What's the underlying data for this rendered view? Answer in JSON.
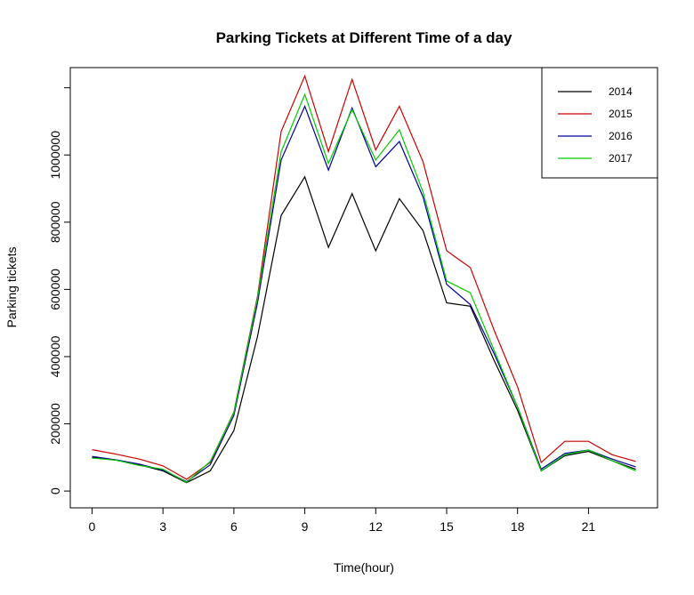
{
  "chart_data": {
    "type": "line",
    "title": "Parking Tickets at Different Time of a day",
    "xlabel": "Time(hour)",
    "ylabel": "Parking tickets",
    "x": [
      0,
      1,
      2,
      3,
      4,
      5,
      6,
      7,
      8,
      9,
      10,
      11,
      12,
      13,
      14,
      15,
      16,
      17,
      18,
      19,
      20,
      21,
      22,
      23
    ],
    "x_ticks": [
      0,
      3,
      6,
      9,
      12,
      15,
      18,
      21
    ],
    "y_ticks": [
      0,
      200000,
      400000,
      600000,
      800000,
      1000000
    ],
    "xlim": [
      -0.92,
      23.92
    ],
    "ylim": [
      -50000,
      1260000
    ],
    "grid": false,
    "legend_position": "top-right",
    "series": [
      {
        "name": "2014",
        "color": "#000000",
        "values": [
          100000,
          92000,
          78000,
          60000,
          25000,
          60000,
          180000,
          460000,
          820000,
          935000,
          725000,
          885000,
          715000,
          870000,
          775000,
          560000,
          550000,
          390000,
          240000,
          60000,
          105000,
          118000,
          90000,
          65000
        ]
      },
      {
        "name": "2015",
        "color": "#cc0000",
        "values": [
          123000,
          110000,
          95000,
          75000,
          35000,
          85000,
          235000,
          580000,
          1070000,
          1235000,
          1010000,
          1225000,
          1015000,
          1145000,
          980000,
          715000,
          665000,
          480000,
          310000,
          85000,
          148000,
          148000,
          108000,
          88000
        ]
      },
      {
        "name": "2016",
        "color": "#000099",
        "values": [
          103000,
          93000,
          80000,
          62000,
          28000,
          78000,
          225000,
          560000,
          985000,
          1145000,
          955000,
          1140000,
          965000,
          1040000,
          875000,
          615000,
          555000,
          410000,
          250000,
          65000,
          112000,
          122000,
          95000,
          72000
        ]
      },
      {
        "name": "2017",
        "color": "#00cc00",
        "values": [
          98000,
          92000,
          76000,
          65000,
          26000,
          88000,
          233000,
          575000,
          1010000,
          1180000,
          975000,
          1135000,
          985000,
          1075000,
          890000,
          625000,
          590000,
          420000,
          250000,
          60000,
          108000,
          122000,
          90000,
          60000
        ]
      }
    ]
  }
}
